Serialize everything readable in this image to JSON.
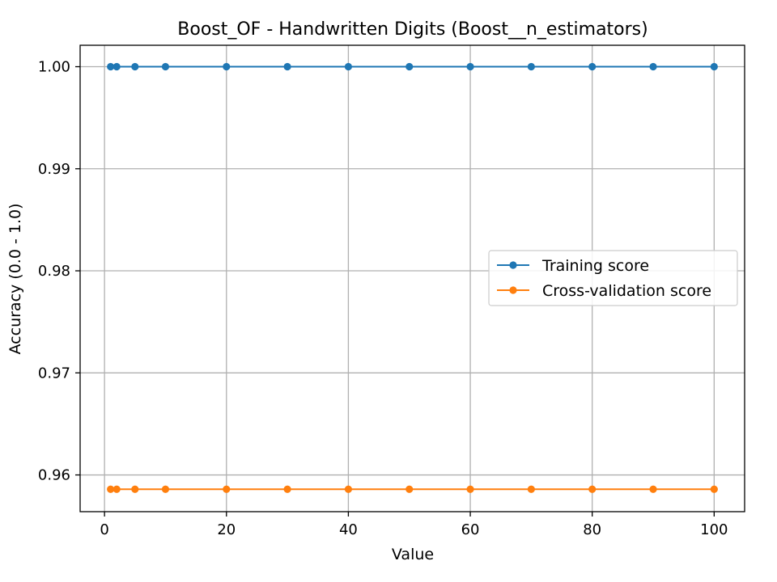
{
  "chart_data": {
    "type": "line",
    "title": "Boost_OF - Handwritten Digits (Boost__n_estimators)",
    "xlabel": "Value",
    "ylabel": "Accuracy (0.0 - 1.0)",
    "xlim": [
      -4.0,
      105.0
    ],
    "ylim": [
      0.9564,
      1.0021
    ],
    "x_ticks": [
      0,
      20,
      40,
      60,
      80,
      100
    ],
    "x_tick_labels": [
      "0",
      "20",
      "40",
      "60",
      "80",
      "100"
    ],
    "y_ticks": [
      0.96,
      0.97,
      0.98,
      0.99,
      1.0
    ],
    "y_tick_labels": [
      "0.96",
      "0.97",
      "0.98",
      "0.99",
      "1.00"
    ],
    "grid": true,
    "legend_position": "center-right",
    "x": [
      1,
      2,
      5,
      10,
      20,
      30,
      40,
      50,
      60,
      70,
      80,
      90,
      100
    ],
    "series": [
      {
        "name": "Training score",
        "color": "#1f77b4",
        "marker": "circle",
        "values": [
          1.0,
          1.0,
          1.0,
          1.0,
          1.0,
          1.0,
          1.0,
          1.0,
          1.0,
          1.0,
          1.0,
          1.0,
          1.0
        ]
      },
      {
        "name": "Cross-validation score",
        "color": "#ff7f0e",
        "marker": "circle",
        "values": [
          0.9586,
          0.9586,
          0.9586,
          0.9586,
          0.9586,
          0.9586,
          0.9586,
          0.9586,
          0.9586,
          0.9586,
          0.9586,
          0.9586,
          0.9586
        ]
      }
    ]
  }
}
